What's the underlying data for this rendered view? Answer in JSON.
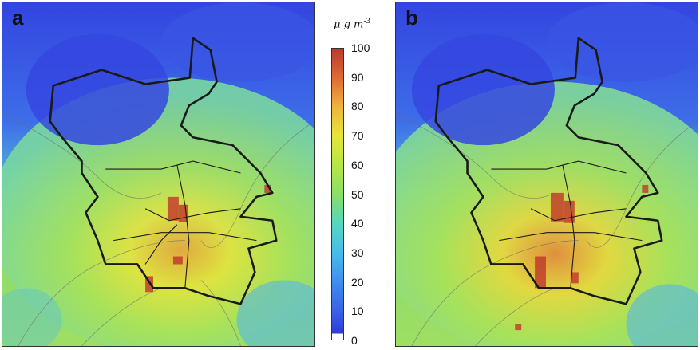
{
  "panels": [
    {
      "label": "a"
    },
    {
      "label": "b"
    }
  ],
  "colorbar": {
    "unit_prefix": "μ",
    "unit_body": "g m",
    "unit_exp": "-3",
    "ticks": [
      "100",
      "90",
      "80",
      "70",
      "60",
      "50",
      "40",
      "30",
      "20",
      "10",
      "0"
    ],
    "colors": {
      "low": "#2d3bdc",
      "mid": "#8adf66",
      "high": "#b83a2d"
    }
  }
}
